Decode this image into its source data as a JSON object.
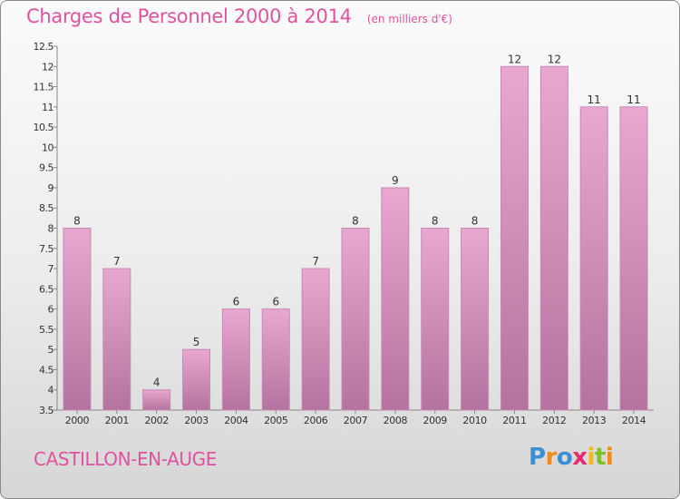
{
  "header": {
    "title": "Charges de Personnel 2000 à 2014",
    "subtitle": "(en milliers d'€)"
  },
  "footer": {
    "place_name": "CASTILLON-EN-AUGE",
    "logo_text": "Proxiti"
  },
  "colors": {
    "bar_top": "#e8a8d0",
    "bar_bottom": "#b4739e",
    "bar_edge": "#c68bb2",
    "title": "#e0529f",
    "axis_text": "#333333"
  },
  "chart_data": {
    "type": "bar",
    "title": "Charges de Personnel 2000 à 2014",
    "subtitle": "(en milliers d'€)",
    "categories": [
      "2000",
      "2001",
      "2002",
      "2003",
      "2004",
      "2005",
      "2006",
      "2007",
      "2008",
      "2009",
      "2010",
      "2011",
      "2012",
      "2013",
      "2014"
    ],
    "values": [
      8,
      7,
      4,
      5,
      6,
      6,
      7,
      8,
      9,
      8,
      8,
      12,
      12,
      11,
      11
    ],
    "ylim": [
      3.5,
      12.5
    ],
    "yticks": [
      3.5,
      4,
      4.5,
      5,
      5.5,
      6,
      6.5,
      7,
      7.5,
      8,
      8.5,
      9,
      9.5,
      10,
      10.5,
      11,
      11.5,
      12,
      12.5
    ],
    "xlabel": "",
    "ylabel": "",
    "grid": false,
    "legend": "none"
  }
}
